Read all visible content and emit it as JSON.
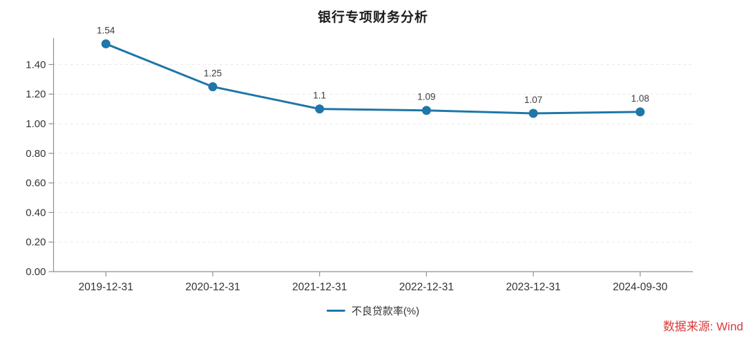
{
  "title": "银行专项财务分析",
  "source": "数据来源: Wind",
  "legend": {
    "items": [
      {
        "label": "不良贷款率(%)"
      }
    ]
  },
  "colors": {
    "line": "#1f76a8",
    "marker": "#1f76a8",
    "grid": "#e8e8e8",
    "axis": "#8f8f8f",
    "tick_text": "#333333",
    "point_label_text": "#3c3c3c",
    "title_text": "#1c1c1c",
    "source_text": "#d93a3a"
  },
  "chart_data": {
    "type": "line",
    "title": "银行专项财务分析",
    "categories": [
      "2019-12-31",
      "2020-12-31",
      "2021-12-31",
      "2022-12-31",
      "2023-12-31",
      "2024-09-30"
    ],
    "series": [
      {
        "name": "不良贷款率(%)",
        "values": [
          1.54,
          1.25,
          1.1,
          1.09,
          1.07,
          1.08
        ],
        "point_labels": [
          "1.54",
          "1.25",
          "1.1",
          "1.09",
          "1.07",
          "1.08"
        ]
      }
    ],
    "xlabel": "",
    "ylabel": "",
    "ylim": [
      0,
      1.58
    ],
    "yticks": [
      "0.00",
      "0.20",
      "0.40",
      "0.60",
      "0.80",
      "1.00",
      "1.20",
      "1.40"
    ],
    "grid": "horizontal-dashed",
    "legend_position": "bottom-center",
    "source_note": "数据来源: Wind"
  }
}
